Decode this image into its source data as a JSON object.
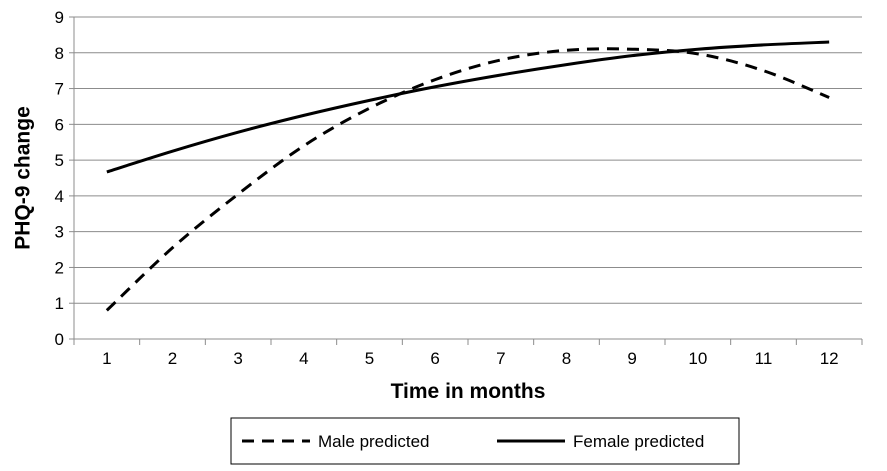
{
  "chart_data": {
    "type": "line",
    "title": "",
    "xlabel": "Time in months",
    "ylabel": "PHQ-9 change",
    "x": [
      1,
      2,
      3,
      4,
      5,
      6,
      7,
      8,
      9,
      10,
      11,
      12
    ],
    "xlim": [
      0.5,
      12.5
    ],
    "ylim": [
      0,
      9
    ],
    "y_ticks": [
      0,
      1,
      2,
      3,
      4,
      5,
      6,
      7,
      8,
      9
    ],
    "grid": "horizontal",
    "legend_position": "bottom",
    "series": [
      {
        "name": "Male predicted",
        "style": "dashed",
        "color": "#000000",
        "values": [
          0.8,
          2.55,
          4.05,
          5.4,
          6.45,
          7.25,
          7.8,
          8.07,
          8.1,
          7.97,
          7.5,
          6.75
        ]
      },
      {
        "name": "Female predicted",
        "style": "solid",
        "color": "#000000",
        "values": [
          4.67,
          5.25,
          5.78,
          6.25,
          6.67,
          7.05,
          7.38,
          7.67,
          7.92,
          8.1,
          8.22,
          8.3
        ]
      }
    ]
  }
}
